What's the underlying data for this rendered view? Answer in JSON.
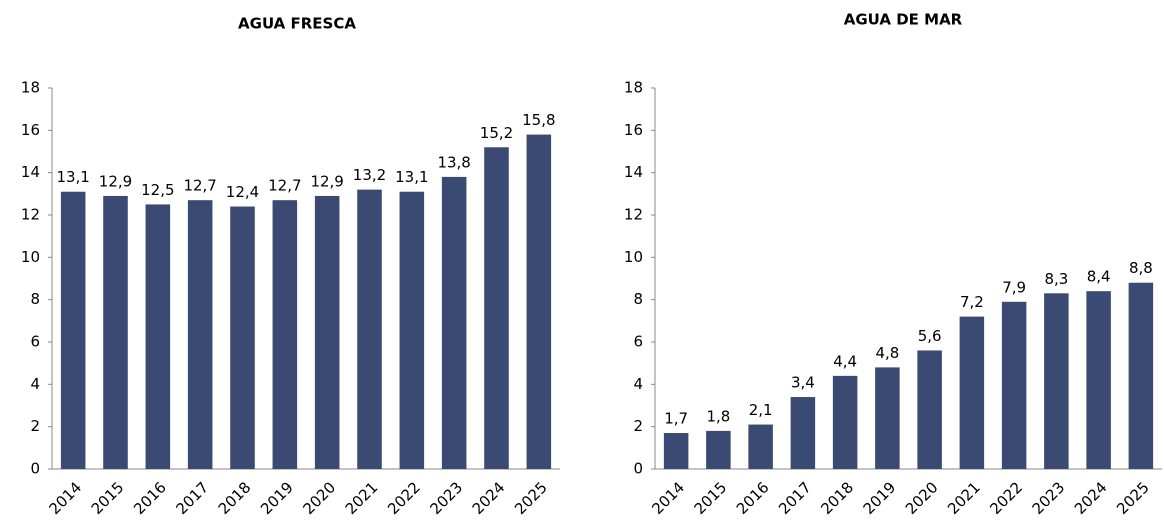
{
  "chart_data": [
    {
      "type": "bar",
      "title": "AGUA FRESCA",
      "categories": [
        "2014",
        "2015",
        "2016",
        "2017",
        "2018",
        "2019",
        "2020",
        "2021",
        "2022",
        "2023",
        "2024",
        "2025"
      ],
      "values": [
        13.1,
        12.9,
        12.5,
        12.7,
        12.4,
        12.7,
        12.9,
        13.2,
        13.1,
        13.8,
        15.2,
        15.8
      ],
      "value_labels": [
        "13,1",
        "12,9",
        "12,5",
        "12,7",
        "12,4",
        "12,7",
        "12,9",
        "13,2",
        "13,1",
        "13,8",
        "15,2",
        "15,8"
      ],
      "color": "#3b4a73",
      "ylim": [
        0,
        18
      ],
      "yticks": [
        0,
        2,
        4,
        6,
        8,
        10,
        12,
        14,
        16,
        18
      ]
    },
    {
      "type": "bar",
      "title": "AGUA DE MAR",
      "categories": [
        "2014",
        "2015",
        "2016",
        "2017",
        "2018",
        "2019",
        "2020",
        "2021",
        "2022",
        "2023",
        "2024",
        "2025"
      ],
      "values": [
        1.7,
        1.8,
        2.1,
        3.4,
        4.4,
        4.8,
        5.6,
        7.2,
        7.9,
        8.3,
        8.4,
        8.8
      ],
      "value_labels": [
        "1,7",
        "1,8",
        "2,1",
        "3,4",
        "4,4",
        "4,8",
        "5,6",
        "7,2",
        "7,9",
        "8,3",
        "8,4",
        "8,8"
      ],
      "color": "#3b4a73",
      "ylim": [
        0,
        18
      ],
      "yticks": [
        0,
        2,
        4,
        6,
        8,
        10,
        12,
        14,
        16,
        18
      ]
    }
  ]
}
